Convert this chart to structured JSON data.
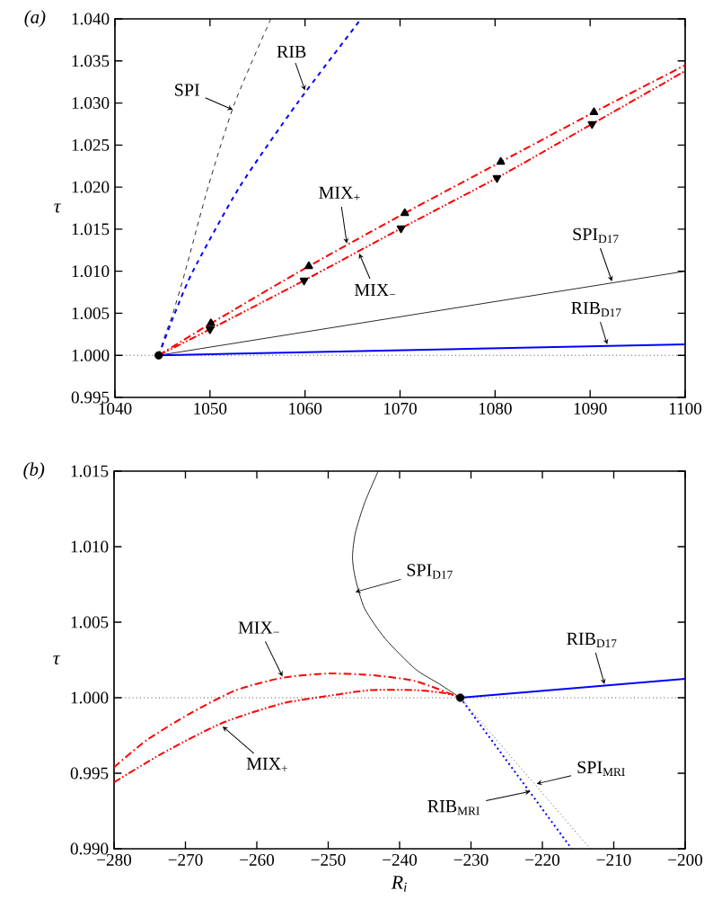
{
  "chart_data": [
    {
      "type": "line",
      "title": "(a)",
      "ylabel": "τ",
      "xlim": [
        1040,
        1100
      ],
      "xticks": [
        1040,
        1050,
        1060,
        1070,
        1080,
        1090,
        1100
      ],
      "ylim": [
        0.995,
        1.04
      ],
      "yticks": [
        {
          "value": 0.995,
          "label": "0.995"
        },
        {
          "value": 1.0,
          "label": "1.000"
        },
        {
          "value": 1.005,
          "label": "1.005"
        },
        {
          "value": 1.01,
          "label": "1.010"
        },
        {
          "value": 1.015,
          "label": "1.015"
        },
        {
          "value": 1.02,
          "label": "1.020"
        },
        {
          "value": 1.025,
          "label": "1.025"
        },
        {
          "value": 1.03,
          "label": "1.030"
        },
        {
          "value": 1.035,
          "label": "1.035"
        },
        {
          "value": 1.04,
          "label": "1.040"
        }
      ],
      "ref_lines": [
        {
          "axis": "y",
          "value": 1.0,
          "color": "#000000",
          "line_style": "dotted"
        }
      ],
      "series": [
        {
          "type": "line",
          "color": "#000000",
          "line_style": "dashed",
          "marker": "none",
          "x": [
            1044.6,
            1045.3,
            1046.1,
            1047.4,
            1049.8,
            1052.6,
            1056.4
          ],
          "values": [
            1.0,
            1.0025,
            1.005,
            1.01,
            1.02,
            1.03,
            1.04
          ]
        },
        {
          "type": "line",
          "color": "#0000ff",
          "line_style": "dashed",
          "marker": "none",
          "x": [
            1044.6,
            1046.3,
            1048.2,
            1053.1,
            1059.2,
            1065.9
          ],
          "values": [
            1.0,
            1.005,
            1.01,
            1.02,
            1.03,
            1.04
          ]
        },
        {
          "type": "line",
          "color": "#ff0000",
          "line_style": "dashdot",
          "marker": "triangle",
          "x": [
            1044.6,
            1050.1,
            1060.4,
            1070.5,
            1080.6,
            1090.4,
            1100
          ],
          "values": [
            1.0,
            1.0038,
            1.0106,
            1.0169,
            1.023,
            1.0289,
            1.0345
          ]
        },
        {
          "type": "line",
          "color": "#ff0000",
          "line_style": "dashdotdot",
          "marker": "triangle-down",
          "x": [
            1044.6,
            1050.0,
            1059.9,
            1070.1,
            1080.2,
            1090.2,
            1100
          ],
          "values": [
            1.0,
            1.0031,
            1.0089,
            1.0151,
            1.0211,
            1.0275,
            1.0338
          ]
        },
        {
          "type": "line",
          "color": "#000000",
          "line_style": "solid",
          "marker": "none",
          "x": [
            1044.6,
            1100
          ],
          "values": [
            1.0,
            1.01
          ]
        },
        {
          "type": "line",
          "color": "#0000ff",
          "line_style": "solid",
          "marker": "none",
          "x": [
            1044.6,
            1100
          ],
          "values": [
            1.0,
            1.0013
          ]
        },
        {
          "type": "scatter",
          "color": "#000000",
          "marker": "circle",
          "x": [
            1044.6
          ],
          "values": [
            1.0
          ]
        }
      ],
      "annotations": [
        {
          "text": "SPI",
          "x": 1052.4,
          "y": 1.0292
        },
        {
          "text": "RIB",
          "x": 1060.0,
          "y": 1.0315
        },
        {
          "text": "MIX$_{+}$",
          "x": 1064.4,
          "y": 1.0133
        },
        {
          "text": "MIX$_{−}$",
          "x": 1065.7,
          "y": 1.0121
        },
        {
          "text": "SPI$_{D17}$",
          "x": 1092.3,
          "y": 1.0088
        },
        {
          "text": "RIB$_{D17}$",
          "x": 1091.8,
          "y": 1.0013
        }
      ]
    },
    {
      "type": "line",
      "title": "(b)",
      "xlabel": "R$_{i}$",
      "ylabel": "τ",
      "xlim": [
        -280,
        -200
      ],
      "xticks": [
        {
          "value": -280,
          "label": "−280"
        },
        {
          "value": -270,
          "label": "−270"
        },
        {
          "value": -260,
          "label": "−260"
        },
        {
          "value": -250,
          "label": "−250"
        },
        {
          "value": -240,
          "label": "−240"
        },
        {
          "value": -230,
          "label": "−230"
        },
        {
          "value": -220,
          "label": "−220"
        },
        {
          "value": -210,
          "label": "−210"
        },
        {
          "value": -200,
          "label": "−200"
        }
      ],
      "ylim": [
        0.99,
        1.015
      ],
      "yticks": [
        {
          "value": 0.99,
          "label": "0.990"
        },
        {
          "value": 0.995,
          "label": "0.995"
        },
        {
          "value": 1.0,
          "label": "1.000"
        },
        {
          "value": 1.005,
          "label": "1.005"
        },
        {
          "value": 1.01,
          "label": "1.010"
        },
        {
          "value": 1.015,
          "label": "1.015"
        }
      ],
      "ref_lines": [
        {
          "axis": "y",
          "value": 1.0,
          "color": "#000000",
          "line_style": "dotted"
        }
      ],
      "series": [
        {
          "type": "line",
          "color": "#000000",
          "line_style": "solid",
          "marker": "none",
          "x": [
            -231.5,
            -234.4,
            -237.8,
            -242.0,
            -244.9,
            -246.2,
            -246.6,
            -246.2,
            -244.9,
            -243.0
          ],
          "values": [
            1.0,
            1.0009,
            1.0019,
            1.0039,
            1.0059,
            1.0079,
            1.0093,
            1.0109,
            1.0129,
            1.015
          ]
        },
        {
          "type": "line",
          "color": "#0000ff",
          "line_style": "solid",
          "marker": "none",
          "x": [
            -231.5,
            -200
          ],
          "values": [
            1.0,
            1.00125
          ]
        },
        {
          "type": "line",
          "color": "#ff0000",
          "line_style": "dashdot",
          "marker": "none",
          "x": [
            -280,
            -275.4,
            -269.2,
            -262.9,
            -256.6,
            -250.3,
            -244.1,
            -237.8,
            -231.5
          ],
          "values": [
            0.9954,
            0.9972,
            0.999,
            1.0005,
            1.0013,
            1.0016,
            1.0015,
            1.0011,
            1.0
          ]
        },
        {
          "type": "line",
          "color": "#ff0000",
          "line_style": "dashdotdot",
          "marker": "none",
          "x": [
            -280,
            -273.3,
            -265.0,
            -256.6,
            -250.3,
            -244.1,
            -237.8,
            -233.6,
            -231.5
          ],
          "values": [
            0.9944,
            0.9963,
            0.9983,
            0.9996,
            1.0001,
            1.0005,
            1.0005,
            1.0003,
            1.0
          ]
        },
        {
          "type": "line",
          "color": "#000000",
          "line_style": "dotted",
          "marker": "none",
          "x": [
            -231.5,
            -213.3
          ],
          "values": [
            1.0,
            0.99
          ]
        },
        {
          "type": "line",
          "color": "#0000ff",
          "line_style": "dotted",
          "marker": "none",
          "x": [
            -231.5,
            -215.9
          ],
          "values": [
            1.0,
            0.99
          ]
        },
        {
          "type": "scatter",
          "color": "#000000",
          "marker": "circle",
          "x": [
            -231.5
          ],
          "values": [
            1.0
          ]
        }
      ],
      "annotations": [
        {
          "text": "SPI$_{D17}$",
          "x": -246.2,
          "y": 1.007
        },
        {
          "text": "MIX$_{−}$",
          "x": -256.4,
          "y": 1.0014
        },
        {
          "text": "MIX$_{+}$",
          "x": -264.8,
          "y": 0.9981
        },
        {
          "text": "RIB$_{D17}$",
          "x": -211.3,
          "y": 1.0009
        },
        {
          "text": "SPI$_{MRI}$",
          "x": -220.8,
          "y": 0.9943
        },
        {
          "text": "RIB$_{MRI}$",
          "x": -221.7,
          "y": 0.9938
        }
      ]
    }
  ]
}
